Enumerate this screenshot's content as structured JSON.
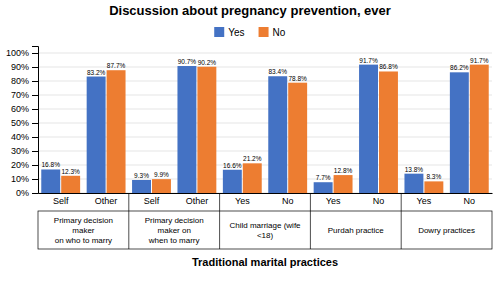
{
  "chart_data": {
    "type": "bar",
    "title": "Discussion about pregnancy prevention, ever",
    "xlabel": "Traditional marital practices",
    "groups": [
      {
        "label": "Primary decision\nmaker\non who to marry",
        "categories": [
          "Self",
          "Other"
        ]
      },
      {
        "label": "Primary decision\nmaker on\nwhen to marry",
        "categories": [
          "Self",
          "Other"
        ]
      },
      {
        "label": "Child marriage (wife\n<18)",
        "categories": [
          "Yes",
          "No"
        ]
      },
      {
        "label": "Purdah practice",
        "categories": [
          "Yes",
          "No"
        ]
      },
      {
        "label": "Dowry practices",
        "categories": [
          "Yes",
          "No"
        ]
      }
    ],
    "series": [
      {
        "name": "Yes",
        "color": "#4472C4",
        "values": [
          16.8,
          83.2,
          9.3,
          90.7,
          16.6,
          83.4,
          7.7,
          91.7,
          13.8,
          86.2
        ],
        "value_labels": [
          "16.8%",
          "83.2%",
          "9.3%",
          "90.7%",
          "16.6%",
          "83.4%",
          "7.7%",
          "91.7%",
          "13.8%",
          "86.2%"
        ]
      },
      {
        "name": "No",
        "color": "#ED7D31",
        "values": [
          12.3,
          87.7,
          9.9,
          90.2,
          21.2,
          78.8,
          12.8,
          86.8,
          8.3,
          91.7
        ],
        "value_labels": [
          "12.3%",
          "87.7%",
          "9.9%",
          "90.2%",
          "21.2%",
          "78.8%",
          "12.8%",
          "86.8%",
          "8.3%",
          "91.7%"
        ]
      }
    ],
    "ylim": [
      0,
      105
    ],
    "yticks": [
      {
        "value": 0,
        "label": "0%"
      },
      {
        "value": 10,
        "label": "10%"
      },
      {
        "value": 20,
        "label": "20%"
      },
      {
        "value": 30,
        "label": "30%"
      },
      {
        "value": 40,
        "label": "40%"
      },
      {
        "value": 50,
        "label": "50%"
      },
      {
        "value": 60,
        "label": "60%"
      },
      {
        "value": 70,
        "label": "70%"
      },
      {
        "value": 80,
        "label": "80%"
      },
      {
        "value": 90,
        "label": "90%"
      },
      {
        "value": 100,
        "label": "100%"
      }
    ],
    "grid": true,
    "legend": "top",
    "data_labels": true
  }
}
